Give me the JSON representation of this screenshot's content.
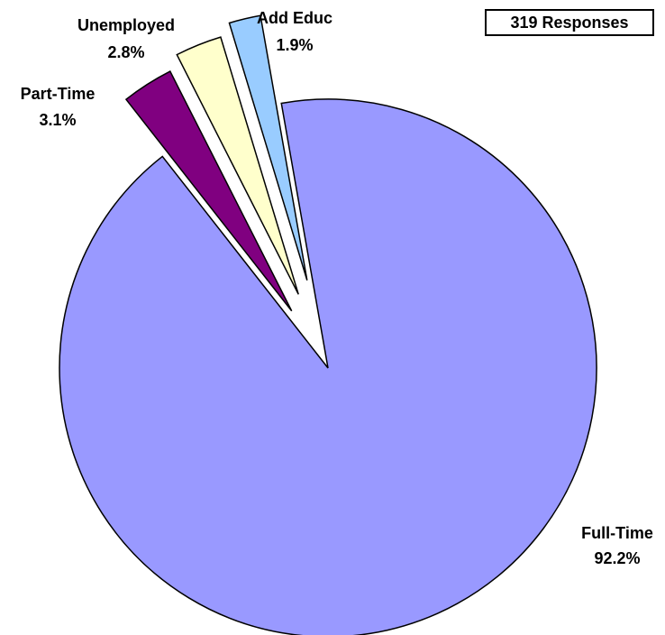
{
  "chart_data": {
    "type": "pie",
    "title": "",
    "start_angle_deg": 350,
    "direction": "clockwise",
    "exploded_slices": [
      "Part-Time",
      "Unemployed",
      "Add Educ"
    ],
    "slices": [
      {
        "name": "Full-Time",
        "value": 92.2,
        "label": "92.2%",
        "color": "#9999FF"
      },
      {
        "name": "Part-Time",
        "value": 3.1,
        "label": "3.1%",
        "color": "#800080"
      },
      {
        "name": "Unemployed",
        "value": 2.8,
        "label": "2.8%",
        "color": "#FFFFCC"
      },
      {
        "name": "Add Educ",
        "value": 1.9,
        "label": "1.9%",
        "color": "#99CCFF"
      }
    ],
    "annotations": [
      {
        "text": "319 Responses",
        "placement": "top-right",
        "boxed": true
      }
    ]
  }
}
